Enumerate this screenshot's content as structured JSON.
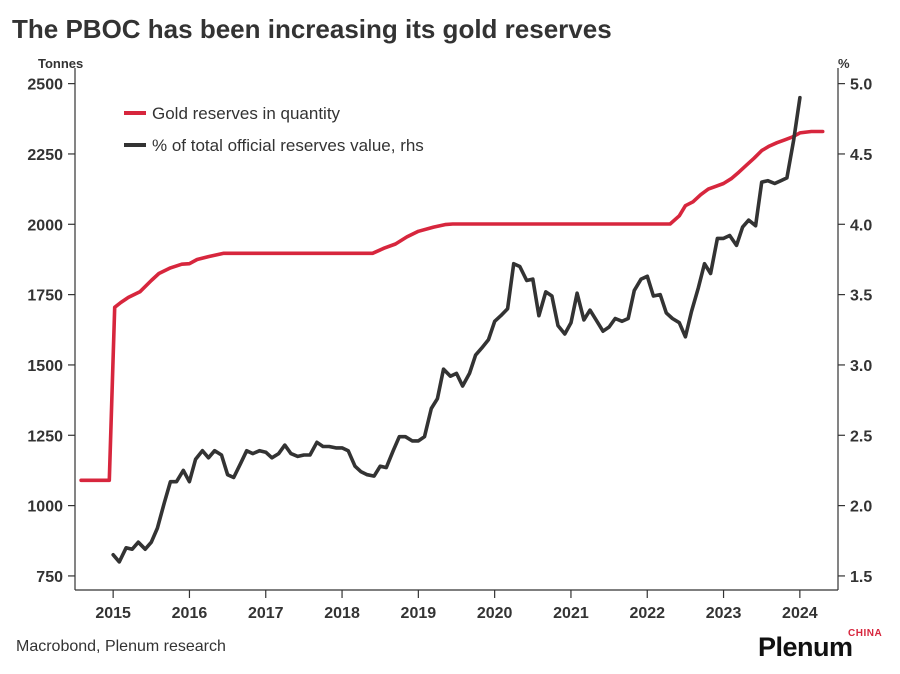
{
  "chart_data": {
    "type": "line",
    "title": "The PBOC has been increasing its gold reserves",
    "y_left": {
      "unit_label": "Tonnes",
      "range": [
        700,
        2520
      ],
      "ticks": [
        750,
        1000,
        1250,
        1500,
        1750,
        2000,
        2250,
        2500
      ]
    },
    "y_right": {
      "unit_label": "%",
      "range": [
        1.4,
        5.04
      ],
      "ticks": [
        "1.5",
        "2.0",
        "2.5",
        "3.0",
        "3.5",
        "4.0",
        "4.5",
        "5.0"
      ]
    },
    "x_axis": {
      "range": [
        2014.5,
        2024.5
      ],
      "labels": [
        "2015",
        "2016",
        "2017",
        "2018",
        "2019",
        "2020",
        "2021",
        "2022",
        "2023",
        "2024"
      ]
    },
    "grid": false,
    "legend_position": "top-left",
    "series": [
      {
        "name": "Gold reserves in quantity",
        "color": "#d7263d",
        "axis": "left",
        "points": [
          [
            2014.58,
            1090
          ],
          [
            2014.95,
            1090
          ],
          [
            2015.02,
            1705
          ],
          [
            2015.1,
            1722
          ],
          [
            2015.2,
            1740
          ],
          [
            2015.35,
            1760
          ],
          [
            2015.5,
            1800
          ],
          [
            2015.6,
            1825
          ],
          [
            2015.75,
            1845
          ],
          [
            2015.9,
            1858
          ],
          [
            2016.0,
            1860
          ],
          [
            2016.1,
            1875
          ],
          [
            2016.25,
            1885
          ],
          [
            2016.45,
            1897
          ],
          [
            2016.6,
            1897
          ],
          [
            2017.0,
            1897
          ],
          [
            2017.5,
            1897
          ],
          [
            2018.0,
            1897
          ],
          [
            2018.4,
            1897
          ],
          [
            2018.55,
            1915
          ],
          [
            2018.7,
            1930
          ],
          [
            2018.85,
            1955
          ],
          [
            2019.0,
            1975
          ],
          [
            2019.2,
            1990
          ],
          [
            2019.35,
            1999
          ],
          [
            2019.45,
            2001
          ],
          [
            2020.0,
            2001
          ],
          [
            2021.0,
            2001
          ],
          [
            2021.5,
            2001
          ],
          [
            2022.0,
            2001
          ],
          [
            2022.3,
            2001
          ],
          [
            2022.42,
            2030
          ],
          [
            2022.5,
            2066
          ],
          [
            2022.6,
            2080
          ],
          [
            2022.7,
            2105
          ],
          [
            2022.8,
            2125
          ],
          [
            2022.9,
            2135
          ],
          [
            2023.0,
            2145
          ],
          [
            2023.1,
            2162
          ],
          [
            2023.2,
            2185
          ],
          [
            2023.3,
            2210
          ],
          [
            2023.4,
            2235
          ],
          [
            2023.5,
            2262
          ],
          [
            2023.6,
            2278
          ],
          [
            2023.7,
            2290
          ],
          [
            2023.8,
            2300
          ],
          [
            2023.9,
            2310
          ],
          [
            2024.0,
            2325
          ],
          [
            2024.15,
            2330
          ],
          [
            2024.3,
            2330
          ]
        ]
      },
      {
        "name": "% of total official reserves value, rhs",
        "color": "#333333",
        "axis": "right",
        "points": [
          [
            2015.0,
            1.65
          ],
          [
            2015.08,
            1.6
          ],
          [
            2015.17,
            1.7
          ],
          [
            2015.25,
            1.69
          ],
          [
            2015.33,
            1.74
          ],
          [
            2015.42,
            1.69
          ],
          [
            2015.5,
            1.74
          ],
          [
            2015.58,
            1.84
          ],
          [
            2015.67,
            2.02
          ],
          [
            2015.75,
            2.17
          ],
          [
            2015.83,
            2.17
          ],
          [
            2015.92,
            2.25
          ],
          [
            2016.0,
            2.17
          ],
          [
            2016.08,
            2.33
          ],
          [
            2016.17,
            2.39
          ],
          [
            2016.25,
            2.34
          ],
          [
            2016.33,
            2.39
          ],
          [
            2016.42,
            2.36
          ],
          [
            2016.5,
            2.22
          ],
          [
            2016.58,
            2.2
          ],
          [
            2016.67,
            2.3
          ],
          [
            2016.75,
            2.39
          ],
          [
            2016.83,
            2.37
          ],
          [
            2016.92,
            2.39
          ],
          [
            2017.0,
            2.38
          ],
          [
            2017.08,
            2.34
          ],
          [
            2017.17,
            2.37
          ],
          [
            2017.25,
            2.43
          ],
          [
            2017.33,
            2.37
          ],
          [
            2017.42,
            2.35
          ],
          [
            2017.5,
            2.36
          ],
          [
            2017.58,
            2.36
          ],
          [
            2017.67,
            2.45
          ],
          [
            2017.75,
            2.42
          ],
          [
            2017.83,
            2.42
          ],
          [
            2017.92,
            2.41
          ],
          [
            2018.0,
            2.41
          ],
          [
            2018.08,
            2.39
          ],
          [
            2018.17,
            2.28
          ],
          [
            2018.25,
            2.24
          ],
          [
            2018.33,
            2.22
          ],
          [
            2018.42,
            2.21
          ],
          [
            2018.5,
            2.28
          ],
          [
            2018.58,
            2.27
          ],
          [
            2018.67,
            2.39
          ],
          [
            2018.75,
            2.49
          ],
          [
            2018.83,
            2.49
          ],
          [
            2018.92,
            2.46
          ],
          [
            2019.0,
            2.46
          ],
          [
            2019.08,
            2.49
          ],
          [
            2019.17,
            2.69
          ],
          [
            2019.25,
            2.76
          ],
          [
            2019.33,
            2.97
          ],
          [
            2019.42,
            2.92
          ],
          [
            2019.5,
            2.94
          ],
          [
            2019.58,
            2.85
          ],
          [
            2019.67,
            2.94
          ],
          [
            2019.75,
            3.07
          ],
          [
            2019.83,
            3.12
          ],
          [
            2019.92,
            3.18
          ],
          [
            2020.0,
            3.31
          ],
          [
            2020.08,
            3.35
          ],
          [
            2020.17,
            3.4
          ],
          [
            2020.25,
            3.72
          ],
          [
            2020.33,
            3.7
          ],
          [
            2020.42,
            3.6
          ],
          [
            2020.5,
            3.61
          ],
          [
            2020.58,
            3.35
          ],
          [
            2020.67,
            3.52
          ],
          [
            2020.75,
            3.49
          ],
          [
            2020.83,
            3.28
          ],
          [
            2020.92,
            3.22
          ],
          [
            2021.0,
            3.3
          ],
          [
            2021.08,
            3.51
          ],
          [
            2021.17,
            3.32
          ],
          [
            2021.25,
            3.39
          ],
          [
            2021.33,
            3.32
          ],
          [
            2021.42,
            3.24
          ],
          [
            2021.5,
            3.27
          ],
          [
            2021.58,
            3.33
          ],
          [
            2021.67,
            3.31
          ],
          [
            2021.75,
            3.33
          ],
          [
            2021.83,
            3.53
          ],
          [
            2021.92,
            3.61
          ],
          [
            2022.0,
            3.63
          ],
          [
            2022.08,
            3.49
          ],
          [
            2022.17,
            3.5
          ],
          [
            2022.25,
            3.37
          ],
          [
            2022.33,
            3.33
          ],
          [
            2022.42,
            3.3
          ],
          [
            2022.5,
            3.2
          ],
          [
            2022.58,
            3.38
          ],
          [
            2022.67,
            3.55
          ],
          [
            2022.75,
            3.72
          ],
          [
            2022.83,
            3.65
          ],
          [
            2022.92,
            3.9
          ],
          [
            2023.0,
            3.9
          ],
          [
            2023.08,
            3.92
          ],
          [
            2023.17,
            3.85
          ],
          [
            2023.25,
            3.98
          ],
          [
            2023.33,
            4.03
          ],
          [
            2023.42,
            3.99
          ],
          [
            2023.5,
            4.3
          ],
          [
            2023.58,
            4.31
          ],
          [
            2023.67,
            4.29
          ],
          [
            2023.75,
            4.31
          ],
          [
            2023.83,
            4.33
          ],
          [
            2023.92,
            4.6
          ],
          [
            2024.0,
            4.9
          ]
        ]
      }
    ]
  },
  "source": "Macrobond, Plenum research",
  "brand": {
    "name": "Plenum",
    "tag": "CHINA"
  }
}
